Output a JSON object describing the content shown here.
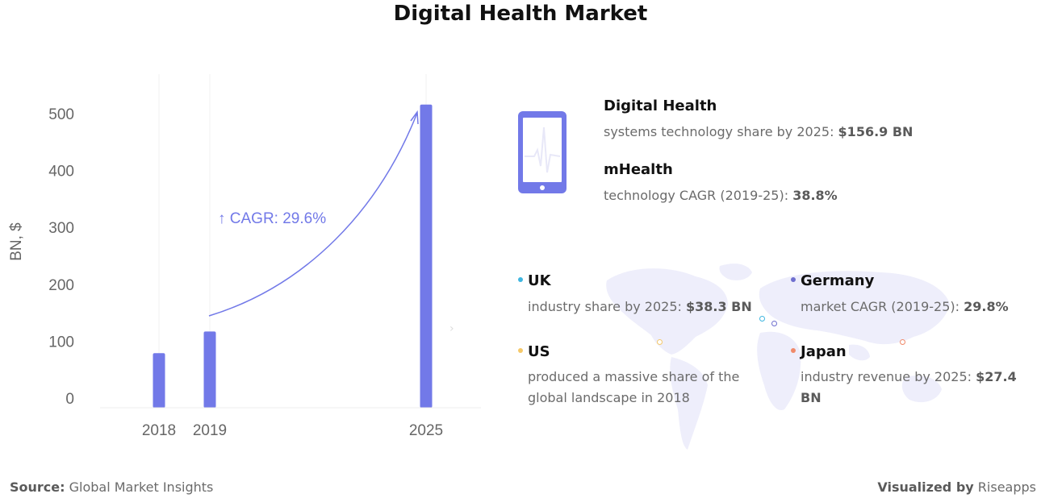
{
  "title": "Digital Health Market",
  "colors": {
    "bar": "#7279e8",
    "annotation": "#7279e8",
    "uk_dot": "#3fb6e0",
    "germany_dot": "#6f6fcf",
    "us_dot": "#f5c96a",
    "japan_dot": "#f08a6a",
    "map": "#eeeefb"
  },
  "chart_data": {
    "type": "bar",
    "categories": [
      "2018",
      "2019",
      "2025"
    ],
    "values": [
      79,
      117,
      516
    ],
    "ylabel": "BN, $",
    "xlabel": "",
    "ylim": [
      0,
      560
    ],
    "yticks": [
      "0",
      "100",
      "200",
      "300",
      "400",
      "500"
    ],
    "annotation": "↑ CAGR: 29.6%",
    "grid": "vertical lines at categories"
  },
  "infographic": {
    "icon": "smartphone-heartbeat-icon",
    "items": [
      {
        "title": "Digital Health",
        "text": "systems technology share by 2025: ",
        "value": "$156.9 BN"
      },
      {
        "title": "mHealth",
        "text": "technology CAGR (2019-25): ",
        "value": "38.8%"
      }
    ]
  },
  "regions": {
    "uk": {
      "title": "UK",
      "text": "industry share by 2025: ",
      "value": "$38.3 BN"
    },
    "germany": {
      "title": "Germany",
      "text": "market CAGR (2019-25): ",
      "value": "29.8%"
    },
    "us": {
      "title": "US",
      "text_line1": "produced a massive share of the",
      "text_line2": "global landscape in 2018"
    },
    "japan": {
      "title": "Japan",
      "text": "industry revenue by 2025: ",
      "value": "$27.4 BN"
    }
  },
  "footer": {
    "source_label": "Source:",
    "source_value": "Global Market Insights",
    "visualized_label": "Visualized by",
    "visualized_value": "Riseapps"
  }
}
